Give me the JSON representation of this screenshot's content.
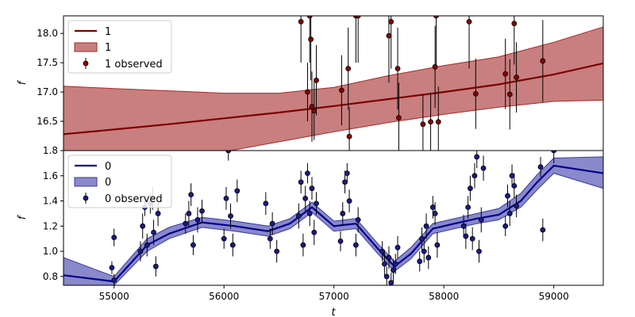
{
  "chart_data": [
    {
      "type": "line",
      "panel": "top",
      "xlabel": "",
      "ylabel": "f",
      "xlim": [
        54540,
        59450
      ],
      "ylim": [
        16.0,
        18.3
      ],
      "xticks": [],
      "yticks": [
        16.5,
        17.0,
        17.5,
        18.0
      ],
      "ytick_labels": [
        "16.5",
        "17.0",
        "17.5",
        "18.0"
      ],
      "legend_position": "upper-left",
      "colors": {
        "line": "#7b0000",
        "band": "#a52a2a",
        "marker": "#8b0000"
      },
      "legend": [
        "1",
        "1",
        "1 observed"
      ],
      "series": [
        {
          "name": "1",
          "kind": "mean",
          "x": [
            54540,
            55000,
            55500,
            56000,
            56500,
            57000,
            57500,
            58000,
            58500,
            59000,
            59450
          ],
          "y": [
            16.28,
            16.36,
            16.45,
            16.55,
            16.65,
            16.76,
            16.88,
            17.0,
            17.13,
            17.3,
            17.49
          ]
        },
        {
          "name": "1",
          "kind": "band",
          "x": [
            54540,
            55000,
            55500,
            56000,
            56500,
            57000,
            57500,
            58000,
            58500,
            59000,
            59450
          ],
          "lower": [
            15.45,
            15.62,
            15.8,
            15.98,
            16.15,
            16.32,
            16.48,
            16.62,
            16.74,
            16.84,
            16.86
          ],
          "upper": [
            17.1,
            17.06,
            17.02,
            16.98,
            16.98,
            17.08,
            17.28,
            17.45,
            17.6,
            17.85,
            18.11
          ]
        },
        {
          "name": "1 observed",
          "kind": "points",
          "points": [
            [
              56700,
              18.2,
              0.7
            ],
            [
              56760,
              17.0,
              0.5
            ],
            [
              56780,
              18.3,
              0.8
            ],
            [
              56790,
              17.9,
              0.7
            ],
            [
              56800,
              16.75,
              0.6
            ],
            [
              56820,
              16.68,
              0.5
            ],
            [
              56840,
              17.2,
              0.6
            ],
            [
              57070,
              17.03,
              0.6
            ],
            [
              57130,
              17.4,
              0.7
            ],
            [
              57140,
              16.24,
              0.5
            ],
            [
              57200,
              18.3,
              0.8
            ],
            [
              57220,
              18.3,
              0.8
            ],
            [
              57500,
              17.96,
              0.8
            ],
            [
              57520,
              18.2,
              0.8
            ],
            [
              57580,
              17.4,
              0.7
            ],
            [
              57590,
              16.56,
              0.6
            ],
            [
              57810,
              16.45,
              0.5
            ],
            [
              57880,
              16.49,
              0.5
            ],
            [
              57920,
              17.43,
              0.7
            ],
            [
              57930,
              18.3,
              0.9
            ],
            [
              57950,
              16.49,
              0.6
            ],
            [
              58230,
              18.2,
              0.8
            ],
            [
              58290,
              16.97,
              0.6
            ],
            [
              58560,
              17.31,
              0.6
            ],
            [
              58600,
              16.96,
              0.6
            ],
            [
              58640,
              18.17,
              0.7
            ],
            [
              58660,
              17.25,
              0.6
            ],
            [
              58900,
              17.53,
              0.7
            ]
          ]
        }
      ]
    },
    {
      "type": "line",
      "panel": "bottom",
      "xlabel": "t",
      "ylabel": "f",
      "xlim": [
        54540,
        59450
      ],
      "ylim": [
        0.73,
        1.8
      ],
      "xticks": [
        55000,
        56000,
        57000,
        58000,
        59000
      ],
      "xtick_labels": [
        "55000",
        "56000",
        "57000",
        "58000",
        "59000"
      ],
      "yticks": [
        0.8,
        1.0,
        1.2,
        1.4,
        1.6,
        1.8
      ],
      "ytick_labels": [
        "0.8",
        "1.0",
        "1.2",
        "1.4",
        "1.6",
        "1.8"
      ],
      "legend_position": "upper-left",
      "colors": {
        "line": "#00008b",
        "band": "#3a3aa8",
        "marker": "#1a1a8c"
      },
      "legend": [
        "0",
        "0",
        "0 observed"
      ],
      "series": [
        {
          "name": "0",
          "kind": "mean",
          "x": [
            54540,
            55000,
            55300,
            55500,
            55800,
            56100,
            56400,
            56600,
            56800,
            57000,
            57200,
            57400,
            57550,
            57700,
            57900,
            58100,
            58300,
            58500,
            58700,
            58850,
            59000,
            59450
          ],
          "y": [
            0.81,
            0.76,
            1.05,
            1.14,
            1.23,
            1.2,
            1.16,
            1.22,
            1.35,
            1.2,
            1.22,
            1.02,
            0.88,
            0.98,
            1.18,
            1.22,
            1.26,
            1.29,
            1.4,
            1.55,
            1.68,
            1.62
          ]
        },
        {
          "name": "0",
          "kind": "band",
          "x": [
            54540,
            55000,
            55300,
            55500,
            55800,
            56100,
            56400,
            56600,
            56800,
            57000,
            57200,
            57400,
            57550,
            57700,
            57900,
            58100,
            58300,
            58500,
            58700,
            58850,
            59000,
            59450
          ],
          "lower": [
            0.67,
            0.73,
            1.0,
            1.1,
            1.19,
            1.16,
            1.12,
            1.18,
            1.31,
            1.16,
            1.18,
            0.98,
            0.84,
            0.94,
            1.14,
            1.18,
            1.22,
            1.25,
            1.35,
            1.49,
            1.62,
            1.5
          ],
          "upper": [
            0.95,
            0.8,
            1.1,
            1.19,
            1.27,
            1.24,
            1.2,
            1.26,
            1.39,
            1.24,
            1.26,
            1.06,
            0.92,
            1.03,
            1.22,
            1.26,
            1.3,
            1.34,
            1.46,
            1.61,
            1.74,
            1.75
          ]
        },
        {
          "name": "0 observed",
          "kind": "points",
          "points": [
            [
              54980,
              0.87,
              0.05
            ],
            [
              55000,
              1.11,
              0.07
            ],
            [
              55000,
              0.77,
              0.05
            ],
            [
              55240,
              1.0,
              0.08
            ],
            [
              55260,
              1.2,
              0.1
            ],
            [
              55280,
              1.35,
              0.07
            ],
            [
              55300,
              1.05,
              0.09
            ],
            [
              55330,
              1.38,
              0.08
            ],
            [
              55350,
              1.42,
              0.09
            ],
            [
              55360,
              1.15,
              0.1
            ],
            [
              55380,
              0.88,
              0.08
            ],
            [
              55400,
              1.3,
              0.1
            ],
            [
              55650,
              1.22,
              0.08
            ],
            [
              55680,
              1.3,
              0.1
            ],
            [
              55700,
              1.45,
              0.09
            ],
            [
              55720,
              1.05,
              0.08
            ],
            [
              55760,
              1.25,
              0.1
            ],
            [
              55800,
              1.32,
              0.09
            ],
            [
              56000,
              1.1,
              0.08
            ],
            [
              56020,
              1.42,
              0.09
            ],
            [
              56040,
              1.8,
              0.08
            ],
            [
              56060,
              1.28,
              0.1
            ],
            [
              56080,
              1.05,
              0.09
            ],
            [
              56120,
              1.48,
              0.09
            ],
            [
              56380,
              1.38,
              0.09
            ],
            [
              56420,
              1.1,
              0.08
            ],
            [
              56440,
              1.22,
              0.09
            ],
            [
              56480,
              1.0,
              0.09
            ],
            [
              56680,
              1.28,
              0.1
            ],
            [
              56700,
              1.55,
              0.09
            ],
            [
              56720,
              1.05,
              0.09
            ],
            [
              56740,
              1.42,
              0.1
            ],
            [
              56760,
              1.62,
              0.08
            ],
            [
              56780,
              1.3,
              0.1
            ],
            [
              56800,
              1.5,
              0.09
            ],
            [
              56820,
              1.15,
              0.1
            ],
            [
              56840,
              1.38,
              0.09
            ],
            [
              57060,
              1.08,
              0.08
            ],
            [
              57080,
              1.3,
              0.09
            ],
            [
              57100,
              1.55,
              0.09
            ],
            [
              57120,
              1.62,
              0.08
            ],
            [
              57140,
              1.4,
              0.09
            ],
            [
              57200,
              1.05,
              0.09
            ],
            [
              57220,
              1.25,
              0.1
            ],
            [
              57440,
              1.0,
              0.08
            ],
            [
              57460,
              0.9,
              0.09
            ],
            [
              57480,
              0.8,
              0.08
            ],
            [
              57500,
              0.95,
              0.09
            ],
            [
              57520,
              0.75,
              0.08
            ],
            [
              57540,
              0.85,
              0.09
            ],
            [
              57560,
              0.9,
              0.08
            ],
            [
              57580,
              1.03,
              0.09
            ],
            [
              57780,
              0.92,
              0.08
            ],
            [
              57800,
              1.1,
              0.09
            ],
            [
              57820,
              1.0,
              0.09
            ],
            [
              57840,
              1.2,
              0.1
            ],
            [
              57860,
              0.95,
              0.09
            ],
            [
              57900,
              1.35,
              0.09
            ],
            [
              57920,
              1.3,
              0.09
            ],
            [
              57940,
              1.05,
              0.1
            ],
            [
              58180,
              1.2,
              0.09
            ],
            [
              58200,
              1.12,
              0.1
            ],
            [
              58220,
              1.35,
              0.09
            ],
            [
              58240,
              1.5,
              0.1
            ],
            [
              58260,
              1.1,
              0.09
            ],
            [
              58280,
              1.6,
              0.1
            ],
            [
              58300,
              1.75,
              0.09
            ],
            [
              58320,
              1.0,
              0.09
            ],
            [
              58340,
              1.25,
              0.1
            ],
            [
              58360,
              1.66,
              0.1
            ],
            [
              58560,
              1.2,
              0.08
            ],
            [
              58580,
              1.44,
              0.09
            ],
            [
              58600,
              1.3,
              0.1
            ],
            [
              58620,
              1.6,
              0.09
            ],
            [
              58640,
              1.52,
              0.1
            ],
            [
              58660,
              1.36,
              0.09
            ],
            [
              58880,
              1.67,
              0.08
            ],
            [
              58900,
              1.17,
              0.09
            ],
            [
              59000,
              1.8,
              0.1
            ]
          ]
        }
      ]
    }
  ]
}
